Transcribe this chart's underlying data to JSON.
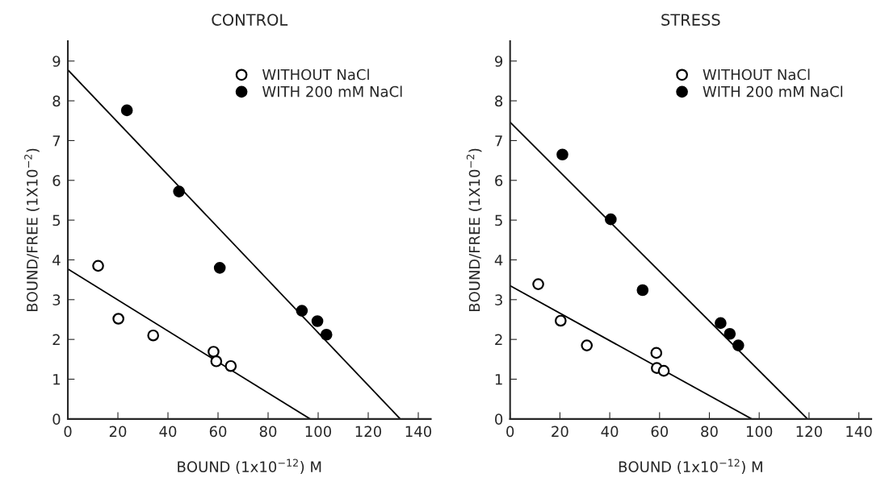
{
  "chart_data": [
    {
      "type": "scatter",
      "title": "CONTROL",
      "xlabel": "BOUND (1x10$^{−12}$) M",
      "ylabel": "BOUND/FREE (1X10$^{−2}$)",
      "xlim": [
        0,
        145
      ],
      "ylim": [
        0,
        9.5
      ],
      "xticks": [
        0,
        20,
        40,
        60,
        80,
        100,
        120,
        140
      ],
      "yticks": [
        0,
        1,
        2,
        3,
        4,
        5,
        6,
        7,
        8,
        9
      ],
      "grid": false,
      "legend": "top right",
      "series": [
        {
          "name": "WITHOUT NaCl",
          "color": "#ffffff",
          "marker": "circle",
          "x": [
            12.1,
            20.2,
            34.1,
            58.2,
            59.3,
            65.1
          ],
          "values": [
            3.85,
            2.52,
            2.1,
            1.69,
            1.45,
            1.33
          ]
        },
        {
          "name": "WITH 200 mM NaCl",
          "color": "#000000",
          "marker": "circle",
          "x": [
            23.6,
            44.4,
            60.7,
            93.5,
            99.7,
            103.3
          ],
          "values": [
            7.76,
            5.72,
            3.8,
            2.72,
            2.46,
            2.12
          ]
        },
        {
          "type": "line",
          "color": "#000000",
          "x": [
            0,
            96.8
          ],
          "values": [
            3.77,
            0
          ]
        },
        {
          "type": "line",
          "color": "#000000",
          "x": [
            0,
            132.8
          ],
          "values": [
            8.78,
            0
          ]
        }
      ]
    },
    {
      "type": "scatter",
      "title": "STRESS",
      "xlabel": "BOUND (1x10$^{−12}$) M",
      "ylabel": "BOUND/FREE (1X10$^{−2}$)",
      "xlim": [
        0,
        145
      ],
      "ylim": [
        0,
        9.5
      ],
      "xticks": [
        0,
        20,
        40,
        60,
        80,
        100,
        120,
        140
      ],
      "yticks": [
        0,
        1,
        2,
        3,
        4,
        5,
        6,
        7,
        8,
        9
      ],
      "grid": false,
      "legend": "top right",
      "series": [
        {
          "name": "WITHOUT NaCl",
          "color": "#ffffff",
          "marker": "circle",
          "x": [
            11.3,
            20.3,
            30.8,
            58.7,
            58.9,
            61.7
          ],
          "values": [
            3.39,
            2.47,
            1.85,
            1.66,
            1.28,
            1.21
          ]
        },
        {
          "name": "WITH 200 mM NaCl",
          "color": "#000000",
          "marker": "circle",
          "x": [
            21.0,
            40.4,
            53.2,
            84.5,
            88.2,
            91.6
          ],
          "values": [
            6.65,
            5.02,
            3.24,
            2.41,
            2.14,
            1.85
          ]
        },
        {
          "type": "line",
          "color": "#000000",
          "x": [
            0,
            97.0
          ],
          "values": [
            3.35,
            0
          ]
        },
        {
          "type": "line",
          "color": "#000000",
          "x": [
            0,
            119.4
          ],
          "values": [
            7.46,
            0
          ]
        }
      ]
    }
  ]
}
